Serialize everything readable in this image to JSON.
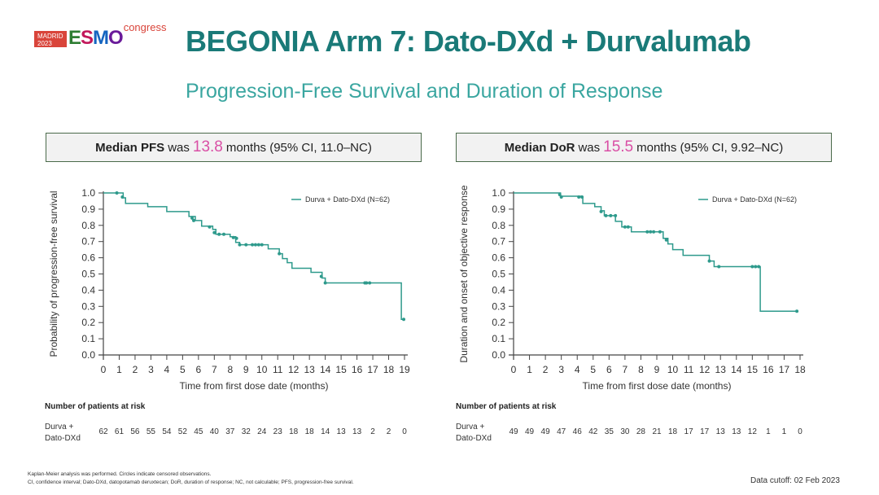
{
  "logo": {
    "city": "MADRID",
    "year": "2023",
    "brand": [
      "E",
      "S",
      "M",
      "O"
    ],
    "suffix": "congress"
  },
  "title": "BEGONIA Arm 7: Dato-DXd + Durvalumab",
  "subtitle": "Progression-Free Survival and Duration of Response",
  "colors": {
    "title": "#1a7a78",
    "subtitle": "#3aa6a0",
    "curve": "#2e9a8c",
    "highlight": "#d94fa5"
  },
  "summary_left": {
    "bold": "Median PFS",
    "pre": "was",
    "value": "13.8",
    "post": "months (95% CI, 11.0–NC)"
  },
  "summary_right": {
    "bold": "Median DoR",
    "pre": "was",
    "value": "15.5",
    "post": "months (95% CI, 9.92–NC)"
  },
  "chart_data": [
    {
      "type": "line",
      "subtype": "kaplan-meier",
      "title": "Median PFS was 13.8 months (95% CI, 11.0–NC)",
      "xlabel": "Time from first dose date (months)",
      "ylabel": "Probability of progression-free survival",
      "xlim": [
        0,
        19
      ],
      "ylim": [
        0,
        1.0
      ],
      "xticks": [
        "0",
        "1",
        "2",
        "3",
        "4",
        "5",
        "6",
        "7",
        "8",
        "9",
        "10",
        "11",
        "12",
        "13",
        "14",
        "15",
        "16",
        "17",
        "18",
        "19"
      ],
      "yticks": [
        "0.0",
        "0.1",
        "0.2",
        "0.3",
        "0.4",
        "0.5",
        "0.6",
        "0.7",
        "0.8",
        "0.9",
        "1.0"
      ],
      "legend": {
        "label": "Durva + Dato-DXd (N=62)",
        "position": "top-right"
      },
      "series": [
        {
          "name": "Durva + Dato-DXd (N=62)",
          "steps": [
            [
              0,
              1.0
            ],
            [
              1.25,
              0.97
            ],
            [
              1.4,
              0.935
            ],
            [
              2.8,
              0.915
            ],
            [
              4.0,
              0.885
            ],
            [
              5.4,
              0.855
            ],
            [
              5.8,
              0.83
            ],
            [
              6.2,
              0.795
            ],
            [
              6.9,
              0.775
            ],
            [
              7.1,
              0.745
            ],
            [
              8.0,
              0.73
            ],
            [
              8.35,
              0.695
            ],
            [
              8.6,
              0.68
            ],
            [
              10.4,
              0.655
            ],
            [
              11.1,
              0.625
            ],
            [
              11.3,
              0.595
            ],
            [
              11.6,
              0.57
            ],
            [
              11.9,
              0.535
            ],
            [
              13.1,
              0.51
            ],
            [
              13.8,
              0.475
            ],
            [
              14.0,
              0.445
            ],
            [
              18.8,
              0.445
            ],
            [
              18.8,
              0.22
            ],
            [
              19.0,
              0.22
            ]
          ],
          "censored": [
            [
              0.85,
              1.0
            ],
            [
              1.2,
              0.975
            ],
            [
              5.6,
              0.845
            ],
            [
              5.7,
              0.83
            ],
            [
              6.7,
              0.79
            ],
            [
              7.0,
              0.755
            ],
            [
              7.3,
              0.745
            ],
            [
              7.6,
              0.745
            ],
            [
              8.2,
              0.725
            ],
            [
              8.4,
              0.72
            ],
            [
              8.6,
              0.68
            ],
            [
              9.0,
              0.68
            ],
            [
              9.4,
              0.68
            ],
            [
              9.6,
              0.68
            ],
            [
              9.8,
              0.68
            ],
            [
              10.0,
              0.68
            ],
            [
              11.1,
              0.625
            ],
            [
              13.75,
              0.485
            ],
            [
              14.0,
              0.445
            ],
            [
              16.5,
              0.445
            ],
            [
              16.6,
              0.445
            ],
            [
              16.8,
              0.445
            ],
            [
              18.95,
              0.22
            ]
          ]
        }
      ],
      "at_risk": {
        "title": "Number of patients at risk",
        "label": "Durva + Dato-DXd",
        "values": [
          62,
          61,
          56,
          55,
          54,
          52,
          45,
          40,
          37,
          32,
          24,
          23,
          18,
          18,
          14,
          13,
          13,
          2,
          2,
          0
        ]
      }
    },
    {
      "type": "line",
      "subtype": "kaplan-meier",
      "title": "Median DoR was 15.5 months (95% CI, 9.92–NC)",
      "xlabel": "Time from first dose date (months)",
      "ylabel": "Duration and onset of objective response",
      "xlim": [
        0,
        18
      ],
      "ylim": [
        0,
        1.0
      ],
      "xticks": [
        "0",
        "1",
        "2",
        "3",
        "4",
        "5",
        "6",
        "7",
        "8",
        "9",
        "10",
        "11",
        "12",
        "13",
        "14",
        "15",
        "16",
        "17",
        "18"
      ],
      "yticks": [
        "0.0",
        "0.1",
        "0.2",
        "0.3",
        "0.4",
        "0.5",
        "0.6",
        "0.7",
        "0.8",
        "0.9",
        "1.0"
      ],
      "legend": {
        "label": "Durva + Dato-DXd (N=62)",
        "position": "top-right"
      },
      "series": [
        {
          "name": "Durva + Dato-DXd (N=62)",
          "steps": [
            [
              0,
              1.0
            ],
            [
              2.9,
              1.0
            ],
            [
              2.95,
              0.98
            ],
            [
              4.3,
              0.975
            ],
            [
              4.35,
              0.935
            ],
            [
              5.1,
              0.915
            ],
            [
              5.5,
              0.89
            ],
            [
              5.7,
              0.86
            ],
            [
              6.0,
              0.86
            ],
            [
              6.4,
              0.825
            ],
            [
              6.8,
              0.79
            ],
            [
              7.4,
              0.76
            ],
            [
              7.8,
              0.76
            ],
            [
              9.4,
              0.72
            ],
            [
              9.7,
              0.685
            ],
            [
              10.0,
              0.65
            ],
            [
              10.65,
              0.615
            ],
            [
              12.3,
              0.58
            ],
            [
              12.6,
              0.545
            ],
            [
              15.5,
              0.545
            ],
            [
              15.5,
              0.27
            ],
            [
              17.8,
              0.27
            ]
          ],
          "censored": [
            [
              2.9,
              0.99
            ],
            [
              3.0,
              0.975
            ],
            [
              4.1,
              0.975
            ],
            [
              4.3,
              0.975
            ],
            [
              5.5,
              0.885
            ],
            [
              5.8,
              0.86
            ],
            [
              6.1,
              0.86
            ],
            [
              6.4,
              0.86
            ],
            [
              7.0,
              0.79
            ],
            [
              7.2,
              0.79
            ],
            [
              8.4,
              0.76
            ],
            [
              8.6,
              0.76
            ],
            [
              8.8,
              0.76
            ],
            [
              9.2,
              0.76
            ],
            [
              9.6,
              0.71
            ],
            [
              12.3,
              0.58
            ],
            [
              12.9,
              0.545
            ],
            [
              15.0,
              0.545
            ],
            [
              15.2,
              0.545
            ],
            [
              15.4,
              0.545
            ],
            [
              17.8,
              0.27
            ]
          ]
        }
      ],
      "at_risk": {
        "title": "Number of patients at risk",
        "label": "Durva + Dato-DXd",
        "values": [
          49,
          49,
          49,
          47,
          46,
          42,
          35,
          30,
          28,
          21,
          18,
          17,
          17,
          13,
          13,
          12,
          1,
          1,
          0
        ]
      }
    }
  ],
  "risk_label_lines": [
    "Durva +",
    "Dato-DXd"
  ],
  "footnotes": [
    "Kaplan-Meier analysis was performed. Circles indicate censored observations.",
    "CI, confidence interval; Dato-DXd, datopotamab deruxtecan; DoR, duration of response; NC, not calculable; PFS, progression-free survival."
  ],
  "data_cutoff": "Data cutoff: 02 Feb 2023"
}
